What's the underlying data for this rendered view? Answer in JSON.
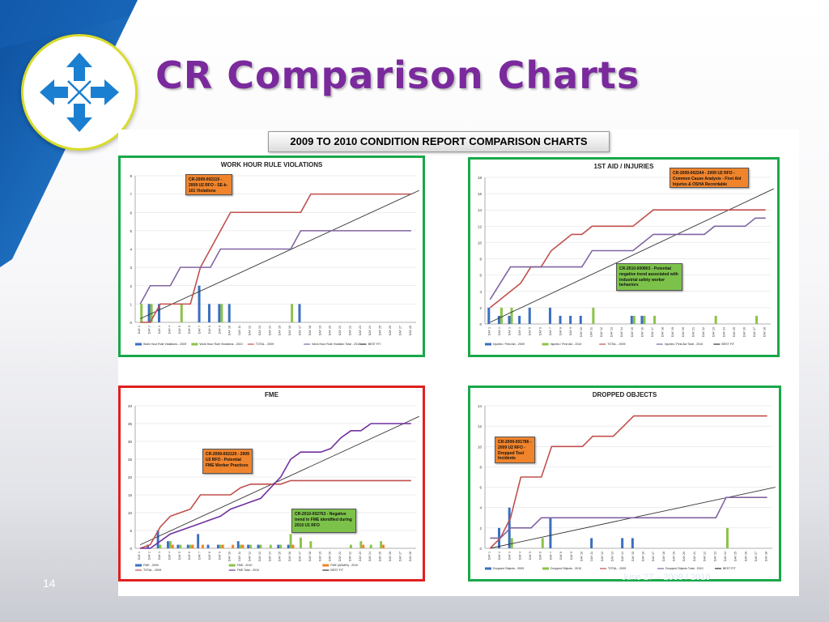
{
  "slide": {
    "title": "CR Comparison Charts",
    "number": "14",
    "date_partial": "June 27 – 2009 / 2010",
    "banner": "2009 TO 2010 CONDITION REPORT COMPARISON CHARTS",
    "logo_icon": "compass-arrows-icon",
    "colors": {
      "title": "#7a2a9c",
      "ribbon": "#1a6fc4",
      "best_fit": "#333333"
    }
  },
  "chart_data": [
    {
      "type": "line",
      "title": "WORK HOUR RULE VIOLATIONS",
      "border_color": "#1aa84a",
      "categories": [
        "DAY 1",
        "DAY 2",
        "DAY 3",
        "DAY 4",
        "DAY 5",
        "DAY 6",
        "DAY 7",
        "DAY 8",
        "DAY 9",
        "DAY 10",
        "DAY 11",
        "DAY 12",
        "DAY 13",
        "DAY 14",
        "DAY 15",
        "DAY 16",
        "DAY 17",
        "DAY 18",
        "DAY 19",
        "DAY 20",
        "DAY 21",
        "DAY 22",
        "DAY 23",
        "DAY 24",
        "DAY 25",
        "DAY 26",
        "DAY 27",
        "DAY 28"
      ],
      "ylim": [
        0,
        8
      ],
      "yticks": [
        0,
        1,
        2,
        3,
        4,
        5,
        6,
        7,
        8
      ],
      "bars": [
        {
          "name": "Work Hour Rule Violations - 2009",
          "color": "#3a6fc0",
          "values": [
            0,
            1,
            1,
            0,
            0,
            0,
            2,
            1,
            1,
            1,
            0,
            0,
            0,
            0,
            0,
            0,
            1,
            0,
            0,
            0,
            0,
            0,
            0,
            0,
            0,
            0,
            0,
            0
          ]
        },
        {
          "name": "Work Hour Rule Violations - 2010",
          "color": "#8cc24a",
          "values": [
            1,
            1,
            0,
            0,
            1,
            0,
            0,
            0,
            1,
            0,
            0,
            0,
            0,
            0,
            0,
            1,
            0,
            0,
            0,
            0,
            0,
            0,
            0,
            0,
            0,
            0,
            0,
            0
          ]
        }
      ],
      "lines": [
        {
          "name": "TOTAL - 2009",
          "color": "#c0504d",
          "values": [
            0,
            0,
            1,
            1,
            1,
            1,
            3,
            4,
            5,
            6,
            6,
            6,
            6,
            6,
            6,
            6,
            6,
            7,
            7,
            7,
            7,
            7,
            7,
            7,
            7,
            7,
            7,
            7
          ]
        },
        {
          "name": "Work Hour Rule Violation Total - 2010",
          "color": "#8064a2",
          "values": [
            1,
            2,
            2,
            2,
            3,
            3,
            3,
            3,
            4,
            4,
            4,
            4,
            4,
            4,
            4,
            4,
            5,
            5,
            5,
            5,
            5,
            5,
            5,
            5,
            5,
            5,
            5,
            5
          ]
        }
      ],
      "best_fit": {
        "name": "BEST FIT",
        "start": 0.2,
        "end": 7.2
      },
      "callout": {
        "text": "CR-2009-002119 - 2009 U2 RFO - SE-k-101 Violations",
        "style": "orange"
      }
    },
    {
      "type": "line",
      "title": "1ST AID / INJURIES",
      "border_color": "#1aa84a",
      "categories": [
        "DAY 1",
        "DAY 2",
        "DAY 3",
        "DAY 4",
        "DAY 5",
        "DAY 6",
        "DAY 7",
        "DAY 8",
        "DAY 9",
        "DAY 10",
        "DAY 11",
        "DAY 12",
        "DAY 13",
        "DAY 14",
        "DAY 15",
        "DAY 16",
        "DAY 17",
        "DAY 18",
        "DAY 19",
        "DAY 20",
        "DAY 21",
        "DAY 22",
        "DAY 23",
        "DAY 24",
        "DAY 25",
        "DAY 26",
        "DAY 27",
        "DAY 28"
      ],
      "ylim": [
        0,
        18
      ],
      "yticks": [
        0,
        2,
        4,
        6,
        8,
        10,
        12,
        14,
        16,
        18
      ],
      "bars": [
        {
          "name": "Injuries / First Aid - 2009",
          "color": "#3a6fc0",
          "values": [
            2,
            1,
            1,
            1,
            2,
            0,
            2,
            1,
            1,
            1,
            0,
            0,
            0,
            0,
            1,
            1,
            0,
            0,
            0,
            0,
            0,
            0,
            0,
            0,
            0,
            0,
            0,
            0
          ]
        },
        {
          "name": "Injuries / First Aid - 2010",
          "color": "#8cc24a",
          "values": [
            0,
            2,
            2,
            0,
            0,
            0,
            0,
            0,
            0,
            0,
            2,
            0,
            0,
            0,
            1,
            1,
            1,
            0,
            0,
            0,
            0,
            0,
            1,
            0,
            0,
            0,
            1,
            0
          ]
        }
      ],
      "lines": [
        {
          "name": "TOTAL - 2009",
          "color": "#c0504d",
          "values": [
            2,
            3,
            4,
            5,
            7,
            7,
            9,
            10,
            11,
            11,
            12,
            12,
            12,
            12,
            12,
            13,
            14,
            14,
            14,
            14,
            14,
            14,
            14,
            14,
            14,
            14,
            14,
            14
          ]
        },
        {
          "name": "Injuries / First Aid Total - 2010",
          "color": "#8064a2",
          "values": [
            3,
            5,
            7,
            7,
            7,
            7,
            7,
            7,
            7,
            7,
            9,
            9,
            9,
            9,
            9,
            10,
            11,
            11,
            11,
            11,
            11,
            11,
            12,
            12,
            12,
            12,
            13,
            13
          ]
        }
      ],
      "best_fit": {
        "name": "BEST FIT",
        "start": 0.2,
        "end": 16.6
      },
      "callouts": [
        {
          "text": "CR-2009-002244 - 2009 U2 RFO - Common Cause Analysis - First Aid Injuries & OSHA Recordable",
          "style": "orange"
        },
        {
          "text": "CR-2010-000803 - Potential negative trend associated with industrial safety worker behaviors",
          "style": "green"
        }
      ]
    },
    {
      "type": "line",
      "title": "FME",
      "border_color": "#e0201f",
      "categories": [
        "DAY 1",
        "DAY 2",
        "DAY 3",
        "DAY 4",
        "DAY 5",
        "DAY 6",
        "DAY 7",
        "DAY 8",
        "DAY 9",
        "DAY 10",
        "DAY 11",
        "DAY 12",
        "DAY 13",
        "DAY 14",
        "DAY 15",
        "DAY 16",
        "DAY 17",
        "DAY 18",
        "DAY 19",
        "DAY 20",
        "DAY 21",
        "DAY 22",
        "DAY 23",
        "DAY 24",
        "DAY 25",
        "DAY 26",
        "DAY 27",
        "DAY 28"
      ],
      "ylim": [
        0,
        40
      ],
      "yticks": [
        0,
        5,
        10,
        15,
        20,
        25,
        30,
        35,
        40
      ],
      "bars": [
        {
          "name": "FME - 2009",
          "color": "#3a6fc0",
          "values": [
            0,
            1,
            5,
            2,
            1,
            1,
            4,
            1,
            1,
            0,
            2,
            1,
            1,
            0,
            1,
            1,
            0,
            0,
            0,
            0,
            0,
            0,
            0,
            0,
            0,
            0,
            0,
            0
          ]
        },
        {
          "name": "FME - 2010",
          "color": "#8cc24a",
          "values": [
            0,
            0,
            1,
            2,
            1,
            1,
            0,
            0,
            1,
            0,
            1,
            1,
            1,
            1,
            1,
            4,
            3,
            2,
            0,
            0,
            0,
            1,
            2,
            1,
            2,
            0,
            0,
            0
          ]
        },
        {
          "name": "FME (ADMIN) - 2010",
          "color": "#f0842c",
          "values": [
            0,
            0,
            0,
            1,
            0,
            1,
            1,
            0,
            1,
            1,
            1,
            0,
            0,
            0,
            0,
            1,
            0,
            0,
            0,
            0,
            0,
            0,
            1,
            0,
            1,
            0,
            0,
            0
          ]
        }
      ],
      "lines": [
        {
          "name": "TOTAL - 2009",
          "color": "#c0504d",
          "values": [
            0,
            1,
            6,
            9,
            10,
            11,
            15,
            15,
            15,
            15,
            17,
            18,
            18,
            18,
            18,
            19,
            19,
            19,
            19,
            19,
            19,
            19,
            19,
            19,
            19,
            19,
            19,
            19
          ]
        },
        {
          "name": "FME Total - 2010",
          "color": "#7030a0",
          "values": [
            0,
            0,
            2,
            4,
            5,
            6,
            7,
            8,
            9,
            11,
            12,
            13,
            14,
            17,
            20,
            25,
            27,
            27,
            27,
            28,
            31,
            33,
            33,
            35,
            35,
            35,
            35,
            35
          ]
        },
        {
          "name": "BEST FIT",
          "color": "#333333",
          "values": []
        }
      ],
      "best_fit": {
        "name": "BEST FIT",
        "start": 1,
        "end": 37
      },
      "callouts": [
        {
          "text": "CR-2009-002120 - 2009 U2 RFO - Potential FME Worker Practices",
          "style": "orange"
        },
        {
          "text": "CR-2010-002763 - Negative trend in FME identified during 2010 U1 RFO",
          "style": "green"
        }
      ]
    },
    {
      "type": "line",
      "title": "DROPPED OBJECTS",
      "border_color": "#1aa84a",
      "categories": [
        "DAY 1",
        "DAY 2",
        "DAY 3",
        "DAY 4",
        "DAY 5",
        "DAY 6",
        "DAY 7",
        "DAY 8",
        "DAY 9",
        "DAY 10",
        "DAY 11",
        "DAY 12",
        "DAY 13",
        "DAY 14",
        "DAY 15",
        "DAY 16",
        "DAY 17",
        "DAY 18",
        "DAY 19",
        "DAY 20",
        "DAY 21",
        "DAY 22",
        "DAY 23",
        "DAY 24",
        "DAY 25",
        "DAY 26",
        "DAY 27",
        "DAY 28"
      ],
      "ylim": [
        0,
        14
      ],
      "yticks": [
        0,
        2,
        4,
        6,
        8,
        10,
        12,
        14
      ],
      "bars": [
        {
          "name": "Dropped Objects - 2009",
          "color": "#3a6fc0",
          "values": [
            0,
            2,
            4,
            0,
            0,
            0,
            3,
            0,
            0,
            0,
            1,
            0,
            0,
            1,
            1,
            0,
            0,
            0,
            0,
            0,
            0,
            0,
            0,
            0,
            0,
            0,
            0,
            0
          ]
        },
        {
          "name": "Dropped Objects - 2010",
          "color": "#8cc24a",
          "values": [
            0,
            0,
            1,
            0,
            0,
            1,
            0,
            0,
            0,
            0,
            0,
            0,
            0,
            0,
            0,
            0,
            0,
            0,
            0,
            0,
            0,
            0,
            0,
            2,
            0,
            0,
            0,
            0
          ]
        }
      ],
      "lines": [
        {
          "name": "TOTAL - 2009",
          "color": "#c0504d",
          "values": [
            0,
            1,
            3,
            7,
            7,
            7,
            10,
            10,
            10,
            10,
            11,
            11,
            11,
            12,
            13,
            13,
            13,
            13,
            13,
            13,
            13,
            13,
            13,
            13,
            13,
            13,
            13,
            13
          ]
        },
        {
          "name": "Dropped Objects Total - 2010",
          "color": "#8064a2",
          "values": [
            1,
            1,
            2,
            2,
            2,
            3,
            3,
            3,
            3,
            3,
            3,
            3,
            3,
            3,
            3,
            3,
            3,
            3,
            3,
            3,
            3,
            3,
            3,
            5,
            5,
            5,
            5,
            5
          ]
        }
      ],
      "best_fit": {
        "name": "BEST FIT",
        "start": 0,
        "end": 6
      },
      "callout": {
        "text": "CR-2009-001786 - 2009 U2 RFO - Dropped Tool Incidents",
        "style": "orange"
      }
    }
  ]
}
